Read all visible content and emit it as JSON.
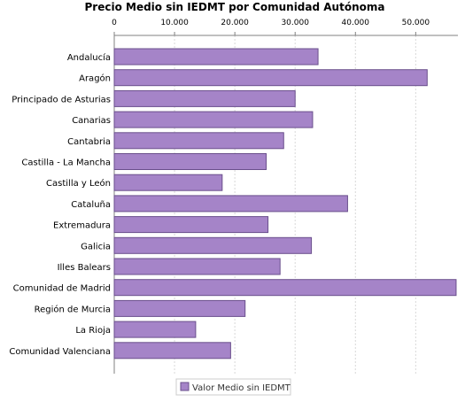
{
  "chart_data": {
    "type": "bar",
    "orientation": "horizontal",
    "title": "Precio Medio sin IEDMT por Comunidad Autónoma",
    "xlabel": "",
    "ylabel": "",
    "xlim": [
      0,
      57000
    ],
    "x_ticks": [
      0,
      10000,
      20000,
      30000,
      40000,
      50000
    ],
    "x_tick_labels": [
      "0",
      "10.000",
      "20.000",
      "30.000",
      "40.000",
      "50.000"
    ],
    "x_axis_position": "top",
    "grid": true,
    "legend_position": "bottom",
    "categories": [
      "Andalucía",
      "Aragón",
      "Principado de Asturias",
      "Canarias",
      "Cantabria",
      "Castilla - La Mancha",
      "Castilla y León",
      "Cataluña",
      "Extremadura",
      "Galicia",
      "Illes Balears",
      "Comunidad de Madrid",
      "Región de Murcia",
      "La Rioja",
      "Comunidad Valenciana"
    ],
    "series": [
      {
        "name": "Valor Medio sin IEDMT",
        "color": "#a584c8",
        "stroke": "#6a4f8c",
        "values": [
          33800,
          51900,
          30000,
          32900,
          28100,
          25200,
          17900,
          38700,
          25500,
          32700,
          27500,
          56700,
          21700,
          13500,
          19300
        ]
      }
    ]
  }
}
